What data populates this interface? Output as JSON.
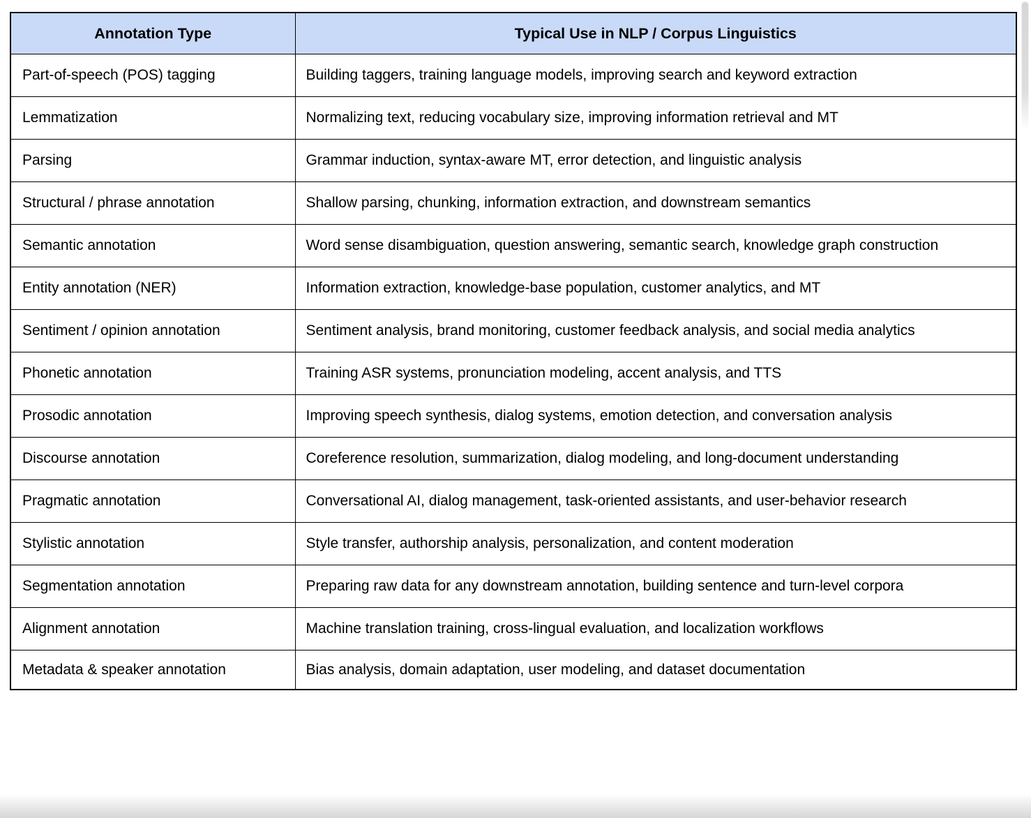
{
  "colors": {
    "header_bg": "#c9daf8",
    "border": "#000000",
    "text": "#000000"
  },
  "table": {
    "columns": [
      {
        "label": "Annotation Type"
      },
      {
        "label": "Typical Use in NLP / Corpus Linguistics"
      }
    ],
    "rows": [
      {
        "type": "Part-of-speech (POS) tagging",
        "use": "Building taggers, training language models, improving search and keyword extraction"
      },
      {
        "type": "Lemmatization",
        "use": "Normalizing text, reducing vocabulary size, improving information retrieval and MT"
      },
      {
        "type": "Parsing",
        "use": "Grammar induction, syntax-aware MT, error detection, and linguistic analysis"
      },
      {
        "type": "Structural / phrase annotation",
        "use": "Shallow parsing, chunking, information extraction, and downstream semantics"
      },
      {
        "type": "Semantic annotation",
        "use": "Word sense disambiguation, question answering, semantic search, knowledge graph construction"
      },
      {
        "type": "Entity annotation (NER)",
        "use": "Information extraction, knowledge-base population, customer analytics, and MT"
      },
      {
        "type": "Sentiment / opinion annotation",
        "use": "Sentiment analysis, brand monitoring, customer feedback analysis, and social media analytics"
      },
      {
        "type": "Phonetic annotation",
        "use": "Training ASR systems, pronunciation modeling, accent analysis, and TTS"
      },
      {
        "type": "Prosodic annotation",
        "use": "Improving speech synthesis, dialog systems, emotion detection, and conversation analysis"
      },
      {
        "type": "Discourse annotation",
        "use": "Coreference resolution, summarization, dialog modeling, and long-document understanding"
      },
      {
        "type": "Pragmatic annotation",
        "use": "Conversational AI, dialog management, task-oriented assistants, and user-behavior research"
      },
      {
        "type": "Stylistic annotation",
        "use": "Style transfer, authorship analysis, personalization, and content moderation"
      },
      {
        "type": "Segmentation annotation",
        "use": "Preparing raw data for any downstream annotation, building sentence and turn-level corpora"
      },
      {
        "type": "Alignment annotation",
        "use": "Machine translation training, cross-lingual evaluation, and localization workflows"
      },
      {
        "type": "Metadata & speaker annotation",
        "use": "Bias analysis, domain adaptation, user modeling, and dataset documentation"
      }
    ]
  }
}
